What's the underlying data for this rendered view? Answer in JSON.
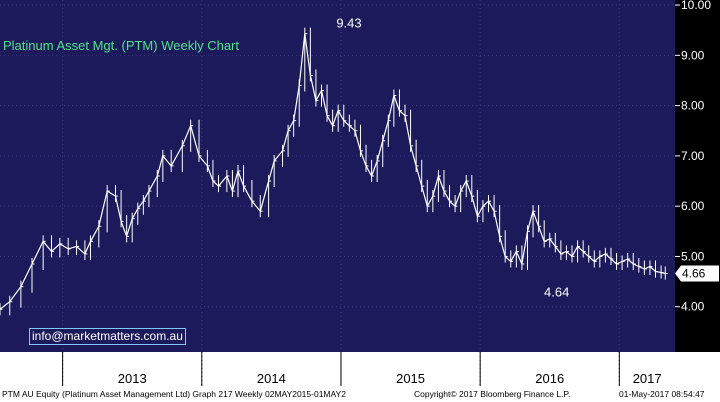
{
  "chart_data": {
    "type": "line",
    "title": "Platinum Asset Mgt. (PTM) Weekly Chart",
    "xlabel": "",
    "ylabel": "",
    "ylim": [
      3.1,
      10.1
    ],
    "yticks": [
      "4.00",
      "5.00",
      "6.00",
      "7.00",
      "8.00",
      "9.00",
      "10.00"
    ],
    "xticks": [
      "2013",
      "2014",
      "2015",
      "2016",
      "2017"
    ],
    "last_price_label": "4.66",
    "annotations": [
      {
        "text": "9.43",
        "x": 2015.0,
        "y": 9.43
      },
      {
        "text": "4.64",
        "x": 2016.55,
        "y": 4.64
      }
    ],
    "series": [
      {
        "x": [
          2012.55,
          2012.62,
          2012.7,
          2012.78,
          2012.86,
          2012.92,
          2012.98,
          2013.04,
          2013.1,
          2013.16,
          2013.2,
          2013.26,
          2013.32,
          2013.38,
          2013.42,
          2013.46,
          2013.5,
          2013.54,
          2013.58,
          2013.62,
          2013.68,
          2013.72,
          2013.78,
          2013.86,
          2013.92,
          2013.98,
          2014.04,
          2014.08,
          2014.12,
          2014.18,
          2014.22,
          2014.26,
          2014.3,
          2014.36,
          2014.42,
          2014.48,
          2014.52,
          2014.58,
          2014.62,
          2014.66,
          2014.7,
          2014.74,
          2014.78,
          2014.82,
          2014.86,
          2014.9,
          2014.94,
          2014.98,
          2015.02,
          2015.06,
          2015.1,
          2015.14,
          2015.18,
          2015.22,
          2015.26,
          2015.3,
          2015.34,
          2015.38,
          2015.42,
          2015.46,
          2015.5,
          2015.54,
          2015.58,
          2015.62,
          2015.66,
          2015.7,
          2015.74,
          2015.78,
          2015.82,
          2015.86,
          2015.9,
          2015.94,
          2015.98,
          2016.02,
          2016.06,
          2016.1,
          2016.14,
          2016.18,
          2016.22,
          2016.26,
          2016.3,
          2016.34,
          2016.38,
          2016.42,
          2016.46,
          2016.5,
          2016.54,
          2016.58,
          2016.62,
          2016.66,
          2016.7,
          2016.74,
          2016.78,
          2016.82,
          2016.86,
          2016.9,
          2016.94,
          2016.98,
          2017.02,
          2017.06,
          2017.1,
          2017.14,
          2017.18,
          2017.22,
          2017.26,
          2017.3,
          2017.33
        ],
        "values": [
          3.95,
          4.1,
          4.4,
          4.85,
          5.3,
          5.1,
          5.25,
          5.15,
          5.2,
          5.05,
          5.3,
          5.6,
          6.3,
          6.2,
          5.7,
          5.4,
          5.75,
          5.95,
          6.1,
          6.3,
          6.6,
          7.0,
          6.8,
          7.2,
          7.6,
          7.0,
          6.8,
          6.5,
          6.4,
          6.6,
          6.3,
          6.7,
          6.4,
          6.1,
          5.9,
          6.5,
          6.9,
          7.1,
          7.5,
          7.7,
          8.4,
          9.43,
          8.6,
          8.1,
          8.3,
          7.8,
          7.6,
          7.9,
          7.7,
          7.6,
          7.5,
          7.1,
          6.8,
          6.6,
          6.9,
          7.3,
          7.7,
          8.2,
          7.9,
          7.8,
          7.2,
          6.8,
          6.4,
          6.0,
          6.2,
          6.6,
          6.3,
          6.1,
          6.0,
          6.3,
          6.5,
          6.2,
          5.8,
          6.0,
          6.1,
          5.9,
          5.4,
          5.0,
          4.9,
          5.1,
          4.85,
          5.5,
          5.9,
          5.6,
          5.3,
          5.35,
          5.2,
          5.05,
          5.1,
          5.0,
          5.2,
          5.1,
          5.0,
          4.9,
          5.0,
          5.05,
          4.95,
          4.85,
          4.9,
          4.95,
          4.85,
          4.8,
          4.75,
          4.8,
          4.7,
          4.68,
          4.66
        ]
      }
    ]
  },
  "footer": {
    "left": "PTM AU Equity (Platinum Asset Management Ltd) Graph 217  Weekly 02MAY2015-01MAY2",
    "middle": "Copyright© 2017 Bloomberg Finance L.P.",
    "right": "01-May-2017 08:54:47"
  },
  "watermark": "info@marketmatters.com.au",
  "colors": {
    "plot_background": "#1c1a5a",
    "price_line": "#ffffff",
    "title": "#4fe38a",
    "axis_strip": "#ffffff"
  }
}
